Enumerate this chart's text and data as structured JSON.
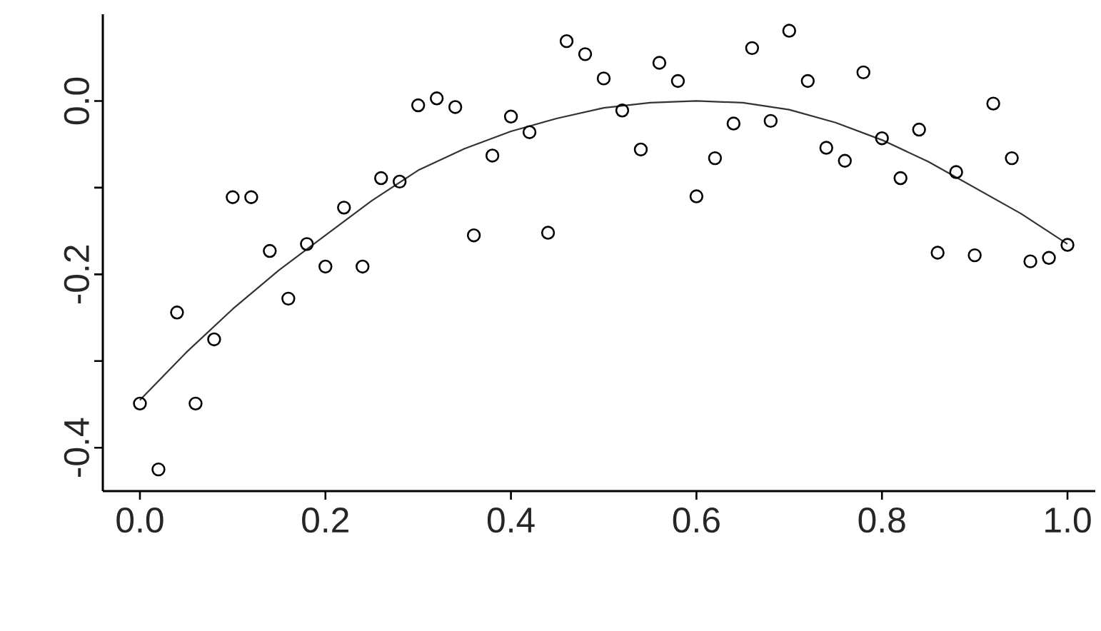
{
  "chart_data": {
    "type": "scatter",
    "x": [
      0,
      0.02,
      0.04,
      0.06,
      0.08,
      0.1,
      0.12,
      0.14,
      0.16,
      0.18,
      0.2,
      0.22,
      0.24,
      0.26,
      0.28,
      0.3,
      0.32,
      0.34,
      0.36,
      0.38,
      0.4,
      0.42,
      0.44,
      0.46,
      0.48,
      0.5,
      0.52,
      0.54,
      0.56,
      0.58,
      0.6,
      0.62,
      0.64,
      0.66,
      0.68,
      0.7,
      0.72,
      0.74,
      0.76,
      0.78,
      0.8,
      0.82,
      0.84,
      0.86,
      0.88,
      0.9,
      0.92,
      0.94,
      0.96,
      0.98,
      1.0
    ],
    "series": [
      {
        "color": "#000000",
        "marker": "circle",
        "values": [
          -0.349,
          -0.425,
          -0.244,
          -0.349,
          -0.275,
          -0.111,
          -0.111,
          -0.173,
          -0.228,
          -0.165,
          -0.191,
          -0.123,
          -0.191,
          -0.089,
          -0.093,
          -0.005,
          0.003,
          -0.007,
          -0.155,
          -0.063,
          -0.018,
          -0.036,
          -0.152,
          0.069,
          0.054,
          0.026,
          -0.011,
          -0.056,
          0.044,
          0.023,
          -0.11,
          -0.066,
          -0.026,
          0.061,
          -0.023,
          0.081,
          0.023,
          -0.054,
          -0.069,
          0.033,
          -0.043,
          -0.089,
          -0.033,
          -0.175,
          -0.082,
          -0.178,
          -0.003,
          -0.066,
          -0.185,
          -0.181,
          -0.166
        ]
      },
      {
        "type": "line",
        "color": "#333333",
        "marker": "none",
        "line_style": "solid",
        "x": [
          0,
          0.05,
          0.1,
          0.15,
          0.2,
          0.25,
          0.3,
          0.35,
          0.4,
          0.45,
          0.5,
          0.55,
          0.6,
          0.65,
          0.7,
          0.75,
          0.8,
          0.85,
          0.9,
          0.95,
          1.0
        ],
        "values": [
          -0.345,
          -0.29,
          -0.24,
          -0.195,
          -0.155,
          -0.115,
          -0.08,
          -0.055,
          -0.035,
          -0.02,
          -0.008,
          -0.002,
          0.0,
          -0.002,
          -0.01,
          -0.025,
          -0.045,
          -0.07,
          -0.1,
          -0.13,
          -0.165
        ]
      }
    ],
    "xlim": [
      -0.04,
      1.03
    ],
    "ylim": [
      -0.45,
      0.1
    ],
    "xticks": [
      {
        "value": 0,
        "label": "0.0"
      },
      {
        "value": 0.2,
        "label": "0.2"
      },
      {
        "value": 0.4,
        "label": "0.4"
      },
      {
        "value": 0.6,
        "label": "0.6"
      },
      {
        "value": 0.8,
        "label": "0.8"
      },
      {
        "value": 1.0,
        "label": "1.0"
      }
    ],
    "yticks": [
      {
        "value": -0.4,
        "label": "-0.4"
      },
      {
        "value": -0.3,
        "label": null
      },
      {
        "value": -0.2,
        "label": "-0.2"
      },
      {
        "value": -0.1,
        "label": null
      },
      {
        "value": 0,
        "label": "0.0"
      }
    ]
  }
}
